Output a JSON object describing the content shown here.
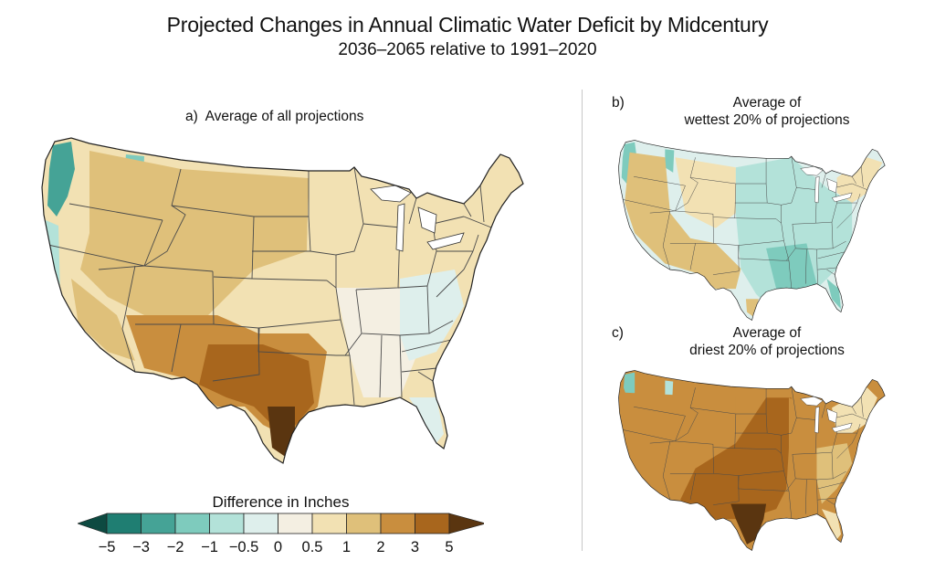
{
  "title": "Projected Changes in Annual Climatic Water Deficit by Midcentury",
  "subtitle": "2036–2065 relative to 1991–2020",
  "panels": [
    {
      "id": "a",
      "letter": "a)",
      "label_lines": [
        "Average of all projections"
      ],
      "description": "Mostly light tan (0.5–2 in) west, teal (wetter) in Cascades/N. Rockies, brown (2–5 in) in Southwest & Texas, near-zero/light teal in East",
      "regions": {
        "pacific_nw_mountains": "-3",
        "northern_rockies": "-2",
        "great_plains_north": "1",
        "southwest": "2",
        "texas": "3",
        "south_texas": "5",
        "midwest": "0.5",
        "ohio_valley": "-0.5",
        "southeast": "0",
        "florida": "-0.5",
        "northeast": "0.5"
      }
    },
    {
      "id": "b",
      "letter": "b)",
      "label_lines": [
        "Average of",
        "wettest 20% of projections"
      ],
      "regions": {
        "pacific_nw_mountains": "-2",
        "west": "1",
        "southwest": "1",
        "great_plains": "-1",
        "midwest": "-1",
        "south_central": "-2",
        "southeast": "-1",
        "florida": "-2",
        "northeast": "0.5"
      }
    },
    {
      "id": "c",
      "letter": "c)",
      "label_lines": [
        "Average of",
        "driest 20% of projections"
      ],
      "regions": {
        "pacific_nw_mountains": "-2",
        "west": "2",
        "great_plains": "3",
        "southwest": "3",
        "texas": "5",
        "midwest": "2",
        "southeast": "1",
        "florida": "0.5",
        "northeast": "0.5"
      }
    }
  ],
  "legend": {
    "title": "Difference in Inches",
    "tick_labels": [
      "−5",
      "−3",
      "−2",
      "−1",
      "−0.5",
      "0",
      "0.5",
      "1",
      "2",
      "3",
      "5"
    ],
    "bins": [
      {
        "range": "< -5",
        "color": "#0d4a41",
        "shape": "arrow-left"
      },
      {
        "range": "-5 to -3",
        "color": "#1f7e72"
      },
      {
        "range": "-3 to -2",
        "color": "#45a396"
      },
      {
        "range": "-2 to -1",
        "color": "#7ecbbd"
      },
      {
        "range": "-1 to -0.5",
        "color": "#b3e2d9"
      },
      {
        "range": "-0.5 to 0",
        "color": "#deefec"
      },
      {
        "range": "0 to 0.5",
        "color": "#f4efe2"
      },
      {
        "range": "0.5 to 1",
        "color": "#f2e1b3"
      },
      {
        "range": "1 to 2",
        "color": "#dfc07a"
      },
      {
        "range": "2 to 3",
        "color": "#c98e3e"
      },
      {
        "range": "3 to 5",
        "color": "#a8661d"
      },
      {
        "range": "> 5",
        "color": "#5a3510",
        "shape": "arrow-right"
      }
    ]
  },
  "chart_data": {
    "type": "heatmap",
    "title": "Projected Changes in Annual Climatic Water Deficit by Midcentury",
    "subtitle": "2036–2065 relative to 1991–2020",
    "colorbar_label": "Difference in Inches",
    "colorbar_ticks": [
      -5,
      -3,
      -2,
      -1,
      -0.5,
      0,
      0.5,
      1,
      2,
      3,
      5
    ],
    "panels": [
      "a) Average of all projections",
      "b) Average of wettest 20% of projections",
      "c) Average of driest 20% of projections"
    ]
  }
}
